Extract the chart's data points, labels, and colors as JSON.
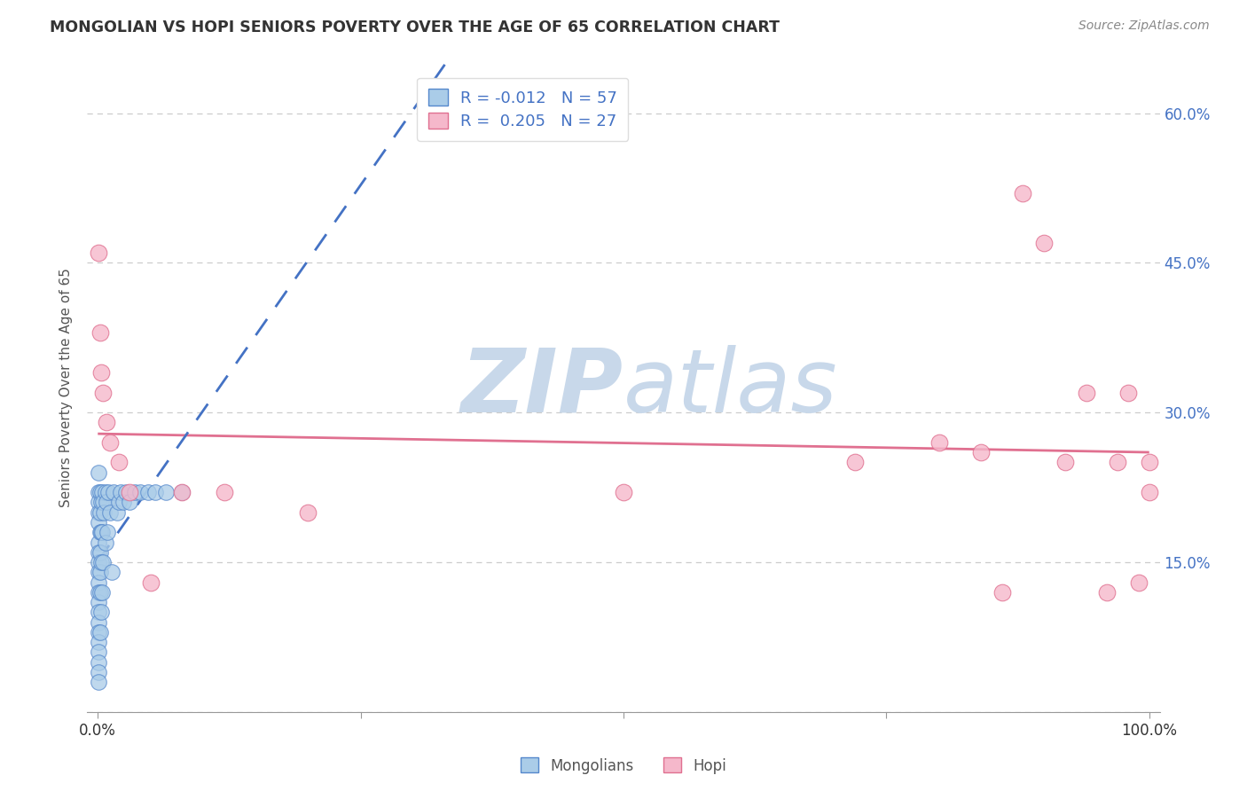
{
  "title": "MONGOLIAN VS HOPI SENIORS POVERTY OVER THE AGE OF 65 CORRELATION CHART",
  "source": "Source: ZipAtlas.com",
  "ylabel": "Seniors Poverty Over the Age of 65",
  "xlim": [
    -0.01,
    1.01
  ],
  "ylim": [
    0.0,
    0.65
  ],
  "mongolian_R": -0.012,
  "mongolian_N": 57,
  "hopi_R": 0.205,
  "hopi_N": 27,
  "mongolian_color": "#aacce8",
  "hopi_color": "#f5b8cb",
  "mongolian_edge_color": "#5588cc",
  "hopi_edge_color": "#e07090",
  "mongolian_line_color": "#4472c4",
  "hopi_line_color": "#e07090",
  "mongolian_x": [
    0.001,
    0.001,
    0.001,
    0.001,
    0.001,
    0.001,
    0.001,
    0.001,
    0.001,
    0.001,
    0.001,
    0.001,
    0.001,
    0.001,
    0.001,
    0.001,
    0.001,
    0.001,
    0.001,
    0.001,
    0.002,
    0.002,
    0.002,
    0.002,
    0.002,
    0.002,
    0.002,
    0.003,
    0.003,
    0.003,
    0.003,
    0.004,
    0.004,
    0.004,
    0.005,
    0.005,
    0.006,
    0.007,
    0.007,
    0.008,
    0.009,
    0.01,
    0.012,
    0.013,
    0.015,
    0.018,
    0.02,
    0.022,
    0.024,
    0.027,
    0.03,
    0.035,
    0.04,
    0.048,
    0.055,
    0.065,
    0.08
  ],
  "mongolian_y": [
    0.24,
    0.22,
    0.21,
    0.2,
    0.19,
    0.17,
    0.16,
    0.15,
    0.14,
    0.13,
    0.12,
    0.11,
    0.1,
    0.09,
    0.08,
    0.07,
    0.06,
    0.05,
    0.04,
    0.03,
    0.22,
    0.2,
    0.18,
    0.16,
    0.14,
    0.12,
    0.08,
    0.21,
    0.18,
    0.15,
    0.1,
    0.22,
    0.18,
    0.12,
    0.21,
    0.15,
    0.2,
    0.22,
    0.17,
    0.21,
    0.18,
    0.22,
    0.2,
    0.14,
    0.22,
    0.2,
    0.21,
    0.22,
    0.21,
    0.22,
    0.21,
    0.22,
    0.22,
    0.22,
    0.22,
    0.22,
    0.22
  ],
  "hopi_x": [
    0.001,
    0.002,
    0.003,
    0.005,
    0.008,
    0.012,
    0.02,
    0.03,
    0.05,
    0.08,
    0.12,
    0.2,
    0.5,
    0.72,
    0.8,
    0.84,
    0.86,
    0.88,
    0.9,
    0.92,
    0.94,
    0.96,
    0.97,
    0.98,
    0.99,
    1.0,
    1.0
  ],
  "hopi_y": [
    0.46,
    0.38,
    0.34,
    0.32,
    0.29,
    0.27,
    0.25,
    0.22,
    0.13,
    0.22,
    0.22,
    0.2,
    0.22,
    0.25,
    0.27,
    0.26,
    0.12,
    0.52,
    0.47,
    0.25,
    0.32,
    0.12,
    0.25,
    0.32,
    0.13,
    0.25,
    0.22
  ],
  "xtick_positions": [
    0.0,
    1.0
  ],
  "xtick_labels": [
    "0.0%",
    "100.0%"
  ],
  "ytick_positions": [
    0.0,
    0.15,
    0.3,
    0.45,
    0.6
  ],
  "ytick_labels_right": [
    "",
    "15.0%",
    "30.0%",
    "45.0%",
    "60.0%"
  ],
  "grid_color": "#cccccc",
  "background_color": "#ffffff",
  "watermark_zip": "ZIP",
  "watermark_atlas": "atlas",
  "watermark_color": "#c8d8ea"
}
